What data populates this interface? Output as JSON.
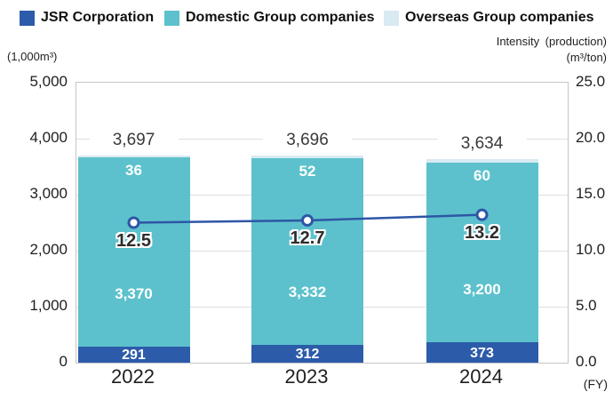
{
  "legend": {
    "items": [
      {
        "label": "JSR Corporation",
        "color": "#2C5BA9"
      },
      {
        "label": "Domestic Group companies",
        "color": "#5CC1CC"
      },
      {
        "label": "Overseas Group companies",
        "color": "#D8EAF2"
      }
    ]
  },
  "axes": {
    "left_unit": "(1,000m³)",
    "right_title": "Intensity (production)",
    "right_unit": "(m³/ton)",
    "fy_label": "(FY)",
    "left_ticks": [
      "5,000",
      "4,000",
      "3,000",
      "2,000",
      "1,000",
      "0"
    ],
    "right_ticks": [
      "25.0",
      "20.0",
      "15.0",
      "10.0",
      "5.0",
      "0.0"
    ]
  },
  "chart_data": {
    "type": "bar",
    "subtype": "stacked-bars-with-line",
    "categories": [
      "2022",
      "2023",
      "2024"
    ],
    "series": [
      {
        "name": "JSR Corporation",
        "type": "bar",
        "color": "#2C5BA9",
        "values": [
          291,
          312,
          373
        ],
        "labels": [
          "291",
          "312",
          "373"
        ]
      },
      {
        "name": "Domestic Group companies",
        "type": "bar",
        "color": "#5CC1CC",
        "values": [
          3370,
          3332,
          3200
        ],
        "labels": [
          "3,370",
          "3,332",
          "3,200"
        ]
      },
      {
        "name": "Overseas Group companies",
        "type": "bar",
        "color": "#D8EAF2",
        "values": [
          36,
          52,
          60
        ],
        "labels": [
          "36",
          "52",
          "60"
        ]
      },
      {
        "name": "Intensity (production)",
        "type": "line",
        "color": "#2E56A6",
        "values": [
          12.5,
          12.7,
          13.2
        ],
        "labels": [
          "12.5",
          "12.7",
          "13.2"
        ]
      }
    ],
    "totals": [
      "3,697",
      "3,696",
      "3,634"
    ],
    "left_axis": {
      "label": "(1,000m³)",
      "min": 0,
      "max": 5000,
      "step": 1000
    },
    "right_axis": {
      "label": "Intensity (production) (m³/ton)",
      "min": 0,
      "max": 25,
      "step": 5
    },
    "grid": true,
    "legend_position": "top"
  }
}
